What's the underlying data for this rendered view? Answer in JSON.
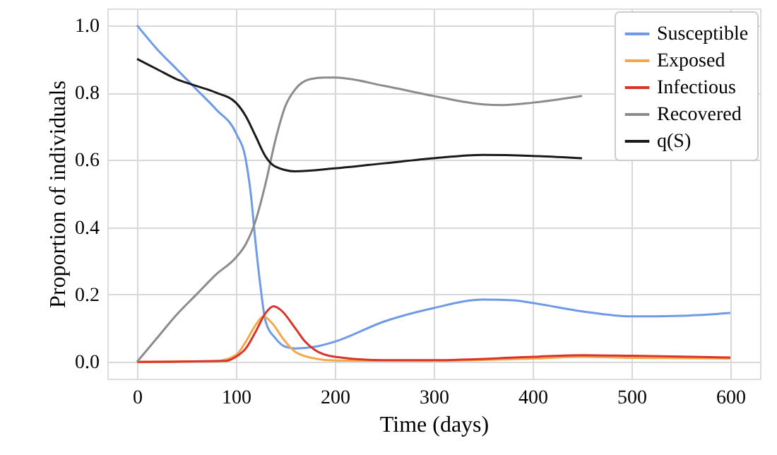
{
  "chart_data": {
    "type": "line",
    "xlabel": "Time (days)",
    "ylabel": "Proportion of individuals",
    "xlim": [
      -30,
      630
    ],
    "ylim": [
      -0.05,
      1.05
    ],
    "xticks": [
      0,
      100,
      200,
      300,
      400,
      500,
      600
    ],
    "yticks": [
      {
        "value": 0,
        "label": "0.0"
      },
      0.2,
      0.4,
      0.6,
      0.8,
      {
        "value": 1,
        "label": "1.0"
      }
    ],
    "grid": true,
    "legend": "top right",
    "marker": "none",
    "line_style": "solid",
    "series": [
      {
        "name": "Susceptible",
        "color": "#6f9ae6",
        "x": [
          0,
          20,
          40,
          60,
          80,
          100,
          110,
          115,
          120,
          125,
          130,
          140,
          150,
          160,
          180,
          200,
          250,
          300,
          350,
          380,
          400,
          450,
          500,
          550,
          600
        ],
        "values": [
          1.0,
          0.93,
          0.87,
          0.81,
          0.75,
          0.68,
          0.6,
          0.5,
          0.35,
          0.22,
          0.12,
          0.07,
          0.045,
          0.04,
          0.045,
          0.06,
          0.12,
          0.16,
          0.185,
          0.183,
          0.175,
          0.15,
          0.135,
          0.137,
          0.145
        ]
      },
      {
        "name": "Exposed",
        "color": "#f5a84a",
        "x": [
          0,
          80,
          100,
          110,
          120,
          128,
          135,
          150,
          160,
          180,
          200,
          300,
          400,
          450,
          500,
          600
        ],
        "values": [
          0.0,
          0.002,
          0.02,
          0.06,
          0.11,
          0.135,
          0.12,
          0.06,
          0.03,
          0.01,
          0.004,
          0.003,
          0.01,
          0.015,
          0.012,
          0.01
        ]
      },
      {
        "name": "Infectious",
        "color": "#d8342a",
        "x": [
          0,
          90,
          100,
          110,
          120,
          130,
          138,
          145,
          160,
          170,
          180,
          200,
          250,
          300,
          400,
          450,
          500,
          600
        ],
        "values": [
          0.0,
          0.003,
          0.015,
          0.04,
          0.09,
          0.145,
          0.165,
          0.155,
          0.1,
          0.06,
          0.035,
          0.015,
          0.005,
          0.005,
          0.015,
          0.02,
          0.018,
          0.013
        ]
      },
      {
        "name": "Recovered",
        "color": "#8c8c8c",
        "x": [
          0,
          20,
          40,
          60,
          80,
          100,
          110,
          120,
          130,
          140,
          150,
          160,
          175,
          190,
          200,
          250,
          300,
          350,
          370,
          400,
          450
        ],
        "values": [
          0.0,
          0.07,
          0.14,
          0.2,
          0.26,
          0.31,
          0.35,
          0.42,
          0.53,
          0.66,
          0.76,
          0.81,
          0.84,
          0.845,
          0.845,
          0.82,
          0.79,
          0.765,
          0.763,
          0.77,
          0.79
        ]
      },
      {
        "name": "q(S)",
        "color": "#1a1a1a",
        "x": [
          0,
          20,
          40,
          60,
          80,
          100,
          110,
          120,
          130,
          140,
          160,
          200,
          250,
          300,
          350,
          400,
          450
        ],
        "values": [
          0.9,
          0.87,
          0.84,
          0.82,
          0.8,
          0.77,
          0.73,
          0.67,
          0.61,
          0.58,
          0.566,
          0.575,
          0.59,
          0.605,
          0.615,
          0.612,
          0.605
        ]
      }
    ]
  }
}
